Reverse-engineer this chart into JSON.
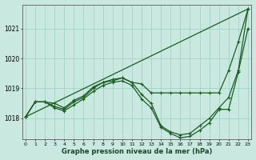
{
  "title": "Graphe pression niveau de la mer (hPa)",
  "background_color": "#c8e8e0",
  "grid_color": "#9ecfbf",
  "line_color": "#1a5e20",
  "ylim": [
    1017.3,
    1021.8
  ],
  "yticks": [
    1018,
    1019,
    1020,
    1021
  ],
  "xlim": [
    -0.3,
    23.3
  ],
  "series_no_marker": [
    [
      0,
      1018.05
    ],
    [
      23,
      1021.65
    ]
  ],
  "series_marked": [
    {
      "x": [
        0,
        1,
        2,
        3,
        4,
        5,
        6,
        7,
        8,
        9,
        10,
        11,
        12,
        13,
        14,
        15,
        16,
        17,
        18,
        19,
        20,
        21,
        22,
        23
      ],
      "y": [
        1018.05,
        1018.55,
        1018.55,
        1018.5,
        1018.35,
        1018.6,
        1018.75,
        1019.05,
        1019.2,
        1019.3,
        1019.35,
        1019.2,
        1019.15,
        1018.85,
        1018.85,
        1018.85,
        1018.85,
        1018.85,
        1018.85,
        1018.85,
        1018.85,
        1019.6,
        1020.55,
        1021.65
      ]
    },
    {
      "x": [
        0,
        1,
        2,
        3,
        4,
        5,
        6,
        7,
        8,
        9,
        10,
        11,
        12,
        13,
        14,
        15,
        16,
        17,
        18,
        19,
        20,
        21,
        22,
        23
      ],
      "y": [
        1018.05,
        1018.55,
        1018.55,
        1018.4,
        1018.3,
        1018.55,
        1018.7,
        1019.0,
        1019.2,
        1019.25,
        1019.35,
        1019.2,
        1018.8,
        1018.5,
        1017.75,
        1017.55,
        1017.45,
        1017.5,
        1017.75,
        1018.0,
        1018.35,
        1018.7,
        1019.6,
        1021.65
      ]
    },
    {
      "x": [
        0,
        1,
        2,
        3,
        4,
        5,
        6,
        7,
        8,
        9,
        10,
        11,
        12,
        13,
        14,
        15,
        16,
        17,
        18,
        19,
        20,
        21,
        22,
        23
      ],
      "y": [
        1018.05,
        1018.55,
        1018.55,
        1018.35,
        1018.25,
        1018.45,
        1018.65,
        1018.9,
        1019.1,
        1019.2,
        1019.25,
        1019.1,
        1018.65,
        1018.35,
        1017.7,
        1017.5,
        1017.35,
        1017.4,
        1017.6,
        1017.85,
        1018.3,
        1018.3,
        1019.55,
        1021.0
      ]
    }
  ]
}
